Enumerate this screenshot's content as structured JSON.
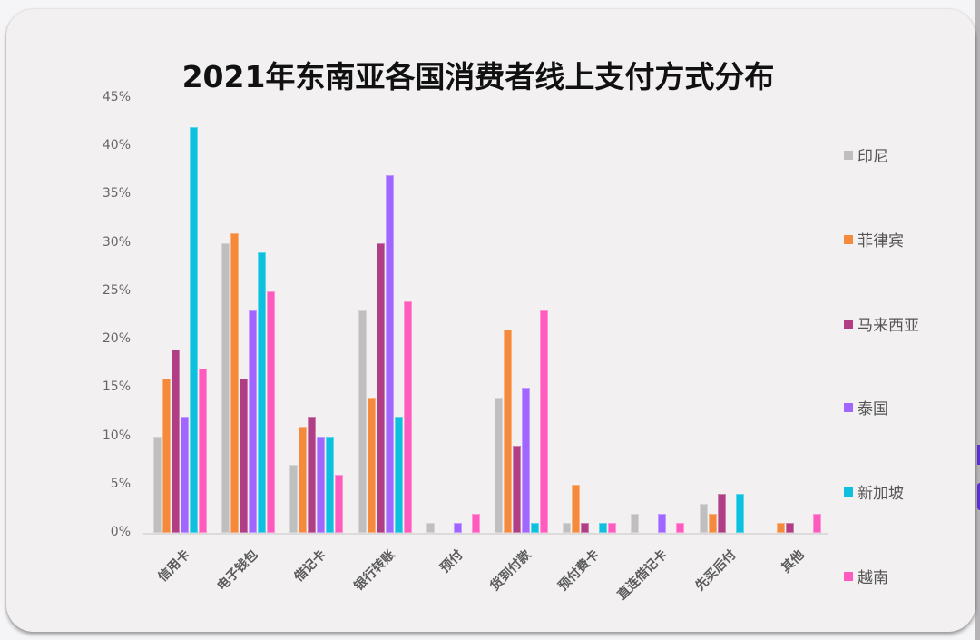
{
  "chart_data": {
    "type": "bar",
    "title": "2021年东南亚各国消费者线上支付方式分布",
    "xlabel": "",
    "ylabel": "",
    "ylim": [
      0,
      45
    ],
    "yticks": [
      "0%",
      "5%",
      "10%",
      "15%",
      "20%",
      "25%",
      "30%",
      "35%",
      "40%",
      "45%"
    ],
    "grid": false,
    "legend_position": "right",
    "categories": [
      "信用卡",
      "电子钱包",
      "借记卡",
      "银行转账",
      "预付",
      "货到付款",
      "预付费卡",
      "直连借记卡",
      "先买后付",
      "其他"
    ],
    "series": [
      {
        "name": "印尼",
        "color": "#bfbfbf",
        "values": [
          10,
          30,
          7,
          23,
          1,
          14,
          1,
          2,
          3,
          0
        ]
      },
      {
        "name": "菲律宾",
        "color": "#f58a3d",
        "values": [
          16,
          31,
          11,
          14,
          0,
          21,
          5,
          0,
          2,
          1
        ]
      },
      {
        "name": "马来西亚",
        "color": "#b03e85",
        "values": [
          19,
          16,
          12,
          30,
          0,
          9,
          1,
          0,
          4,
          1
        ]
      },
      {
        "name": "泰国",
        "color": "#a066ff",
        "values": [
          12,
          23,
          10,
          37,
          1,
          15,
          0,
          2,
          0,
          0
        ]
      },
      {
        "name": "新加坡",
        "color": "#0dc0de",
        "values": [
          42,
          29,
          10,
          12,
          0,
          1,
          1,
          0,
          4,
          0
        ]
      },
      {
        "name": "越南",
        "color": "#ff5bbf",
        "values": [
          17,
          25,
          6,
          24,
          2,
          23,
          1,
          1,
          0,
          2
        ]
      }
    ]
  }
}
